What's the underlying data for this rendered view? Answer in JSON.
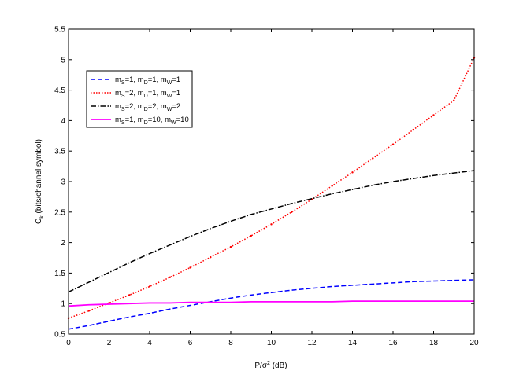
{
  "chart_data": {
    "type": "line",
    "title": "",
    "xlabel": {
      "main": "P/σ",
      "sup": "2",
      "tail": " (dB)"
    },
    "ylabel": {
      "main": "C",
      "sub": "k",
      "tail": " (bits/channel symbol)"
    },
    "xlim": [
      0,
      20
    ],
    "ylim": [
      0.5,
      5.5
    ],
    "xticks": [
      "0",
      "2",
      "4",
      "6",
      "8",
      "10",
      "12",
      "14",
      "16",
      "18",
      "20"
    ],
    "yticks": [
      "0.5",
      "1",
      "1.5",
      "2",
      "2.5",
      "3",
      "3.5",
      "4",
      "4.5",
      "5",
      "5.5"
    ],
    "grid": false,
    "legend_position": "upper-left",
    "x": [
      0,
      1,
      2,
      3,
      4,
      5,
      6,
      7,
      8,
      9,
      10,
      11,
      12,
      13,
      14,
      15,
      16,
      17,
      18,
      19,
      20
    ],
    "series": [
      {
        "label_parts": [
          [
            "m",
            ""
          ],
          [
            "S",
            "sub"
          ],
          [
            "=1, m",
            ""
          ],
          [
            "D",
            "sub"
          ],
          [
            "=1, m",
            ""
          ],
          [
            "W",
            "sub"
          ],
          [
            "=1",
            ""
          ]
        ],
        "color": "#0000ff",
        "dash": "6,3",
        "markers": false,
        "values": [
          0.58,
          0.64,
          0.71,
          0.78,
          0.84,
          0.91,
          0.97,
          1.03,
          1.09,
          1.14,
          1.18,
          1.22,
          1.25,
          1.28,
          1.3,
          1.32,
          1.34,
          1.36,
          1.37,
          1.38,
          1.39
        ]
      },
      {
        "label_parts": [
          [
            "m",
            ""
          ],
          [
            "S",
            "sub"
          ],
          [
            "=2, m",
            ""
          ],
          [
            "D",
            "sub"
          ],
          [
            "=1, m",
            ""
          ],
          [
            "W",
            "sub"
          ],
          [
            "=1",
            ""
          ]
        ],
        "color": "#ff0000",
        "dash": "1.5,2",
        "markers": true,
        "values": [
          0.76,
          0.88,
          1.01,
          1.14,
          1.28,
          1.43,
          1.59,
          1.76,
          1.93,
          2.11,
          2.3,
          2.5,
          2.71,
          2.93,
          3.15,
          3.38,
          3.61,
          3.85,
          4.09,
          4.33,
          5.03
        ]
      },
      {
        "label_parts": [
          [
            "m",
            ""
          ],
          [
            "S",
            "sub"
          ],
          [
            "=2, m",
            ""
          ],
          [
            "D",
            "sub"
          ],
          [
            "=2, m",
            ""
          ],
          [
            "W",
            "sub"
          ],
          [
            "=2",
            ""
          ]
        ],
        "color": "#000000",
        "dash": "7,2,1.5,2",
        "markers": false,
        "values": [
          1.19,
          1.35,
          1.51,
          1.67,
          1.82,
          1.96,
          2.1,
          2.23,
          2.35,
          2.46,
          2.55,
          2.64,
          2.72,
          2.8,
          2.87,
          2.94,
          3.0,
          3.05,
          3.1,
          3.14,
          3.18
        ]
      },
      {
        "label_parts": [
          [
            "m",
            ""
          ],
          [
            "S",
            "sub"
          ],
          [
            "=1, m",
            ""
          ],
          [
            "D",
            "sub"
          ],
          [
            "=10, m",
            ""
          ],
          [
            "W",
            "sub"
          ],
          [
            "=10",
            ""
          ]
        ],
        "color": "#ff00ff",
        "dash": "",
        "markers": false,
        "values": [
          0.96,
          0.98,
          0.99,
          1.0,
          1.01,
          1.01,
          1.02,
          1.02,
          1.02,
          1.03,
          1.03,
          1.03,
          1.03,
          1.03,
          1.04,
          1.04,
          1.04,
          1.04,
          1.04,
          1.04,
          1.04
        ]
      }
    ]
  }
}
